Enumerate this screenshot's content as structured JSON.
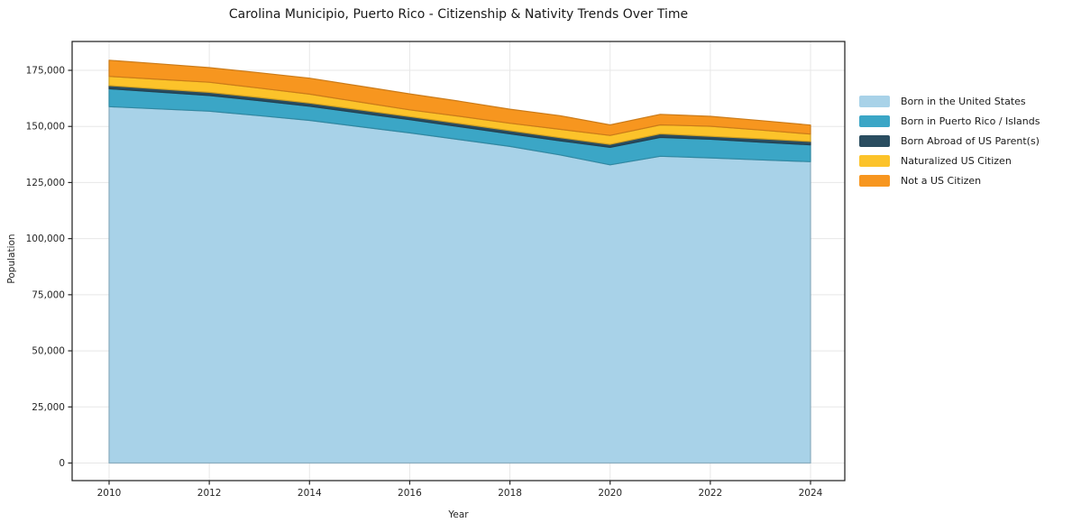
{
  "chart_data": {
    "type": "area",
    "stacked": true,
    "title": "Carolina Municipio, Puerto Rico - Citizenship & Nativity Trends Over Time",
    "xlabel": "Year",
    "ylabel": "Population",
    "x": [
      2010,
      2011,
      2012,
      2013,
      2014,
      2015,
      2016,
      2017,
      2018,
      2019,
      2020,
      2021,
      2022,
      2023,
      2024
    ],
    "series": [
      {
        "name": "Born in the United States",
        "color": "#a8d2e8",
        "values": [
          158800,
          157800,
          156800,
          154800,
          152700,
          149900,
          147100,
          144100,
          141100,
          137300,
          132900,
          136700,
          136000,
          135100,
          134300
        ]
      },
      {
        "name": "Born in Puerto Rico / Islands",
        "color": "#3ba6c6",
        "values": [
          8000,
          7500,
          7000,
          6700,
          6300,
          6100,
          5900,
          5800,
          5600,
          6300,
          7800,
          8400,
          8300,
          7900,
          7500
        ]
      },
      {
        "name": "Born Abroad of US Parent(s)",
        "color": "#2a4d60",
        "values": [
          1400,
          1400,
          1400,
          1400,
          1400,
          1400,
          1400,
          1400,
          1400,
          1400,
          1300,
          1600,
          1300,
          1500,
          1500
        ]
      },
      {
        "name": "Naturalized US Citizen",
        "color": "#fcc32a",
        "values": [
          4100,
          4300,
          4500,
          4200,
          4000,
          3500,
          3000,
          3200,
          3300,
          3700,
          4000,
          4000,
          4500,
          3900,
          3300
        ]
      },
      {
        "name": "Not a US Citizen",
        "color": "#f7961f",
        "values": [
          7200,
          6900,
          6500,
          6800,
          7100,
          7100,
          7100,
          6700,
          6300,
          6100,
          4700,
          4700,
          4400,
          4200,
          4000
        ]
      }
    ],
    "xtick_values": [
      2010,
      2012,
      2014,
      2016,
      2018,
      2020,
      2022,
      2024
    ],
    "xtick_labels": [
      "2010",
      "2012",
      "2014",
      "2016",
      "2018",
      "2020",
      "2022",
      "2024"
    ],
    "ytick_values": [
      0,
      25000,
      50000,
      75000,
      100000,
      125000,
      150000,
      175000
    ],
    "ytick_labels": [
      "0",
      "25,000",
      "50,000",
      "75,000",
      "100,000",
      "125,000",
      "150,000",
      "175,000"
    ],
    "xlim": [
      2010,
      2024
    ],
    "ylim": [
      0,
      175000
    ],
    "grid": true,
    "legend_position": "right-outside",
    "colors": {
      "grid": "#e7e7e7",
      "spine": "#1a1a1a",
      "tick": "#262626",
      "tick_label": "#262626",
      "background": "#ffffff"
    }
  }
}
